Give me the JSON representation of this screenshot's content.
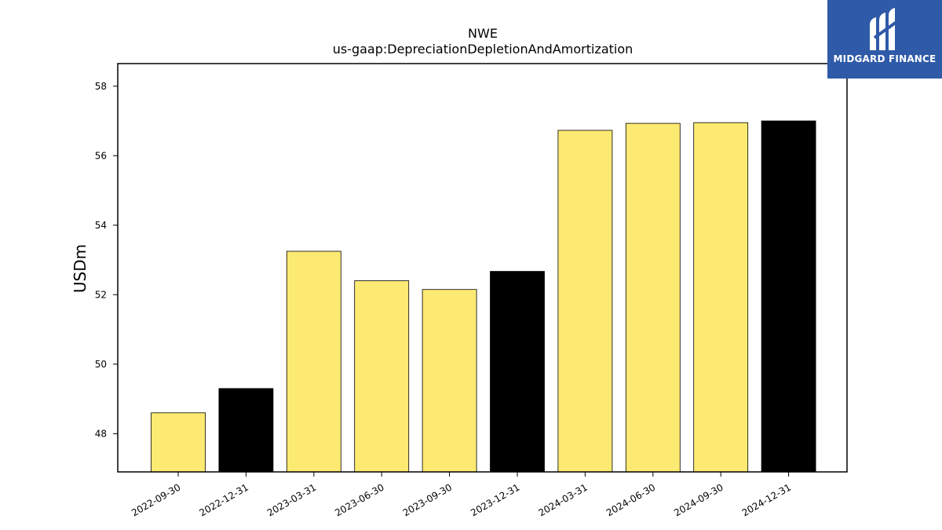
{
  "brand": {
    "name": "MIDGARD FINANCE",
    "background": "#2f5aa8"
  },
  "chart_data": {
    "type": "bar",
    "title": "NWE",
    "subtitle": "us-gaap:DepreciationDepletionAndAmortization",
    "xlabel": "",
    "ylabel": "USDm",
    "categories": [
      "2022-09-30",
      "2022-12-31",
      "2023-03-31",
      "2023-06-30",
      "2023-09-30",
      "2023-12-31",
      "2024-03-31",
      "2024-06-30",
      "2024-09-30",
      "2024-12-31"
    ],
    "values": [
      48.6,
      49.3,
      53.25,
      52.4,
      52.15,
      52.67,
      56.73,
      56.93,
      56.95,
      57.0
    ],
    "colors": [
      "#fdea72",
      "#000000",
      "#fdea72",
      "#fdea72",
      "#fdea72",
      "#000000",
      "#fdea72",
      "#fdea72",
      "#fdea72",
      "#000000"
    ],
    "yticks": [
      "48",
      "50",
      "52",
      "54",
      "56",
      "58"
    ],
    "ylim": [
      46.9,
      58.65
    ],
    "grid": false,
    "legend": "none"
  }
}
